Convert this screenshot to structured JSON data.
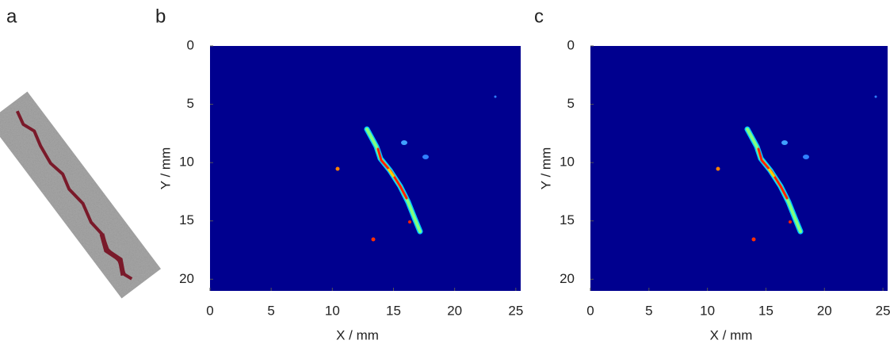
{
  "figure": {
    "panel_labels": [
      "a",
      "b",
      "c"
    ]
  },
  "chart_data": [
    {
      "type": "heatmap",
      "xlabel": "X / mm",
      "ylabel": "Y / mm",
      "background": "#00008f",
      "xlim": [
        0,
        25.4
      ],
      "ylim": [
        0,
        21
      ],
      "y_inverted": true,
      "xticks": [
        0,
        5,
        10,
        15,
        20,
        25
      ],
      "yticks": [
        0,
        5,
        10,
        15,
        20
      ]
    },
    {
      "type": "heatmap",
      "xlabel": "X / mm",
      "ylabel": "Y / mm",
      "background": "#00008f",
      "xlim": [
        0,
        25.4
      ],
      "ylim": [
        0,
        21
      ],
      "y_inverted": true,
      "xticks": [
        0,
        5,
        10,
        15,
        20,
        25
      ],
      "yticks": [
        0,
        5,
        10,
        15,
        20
      ]
    }
  ]
}
